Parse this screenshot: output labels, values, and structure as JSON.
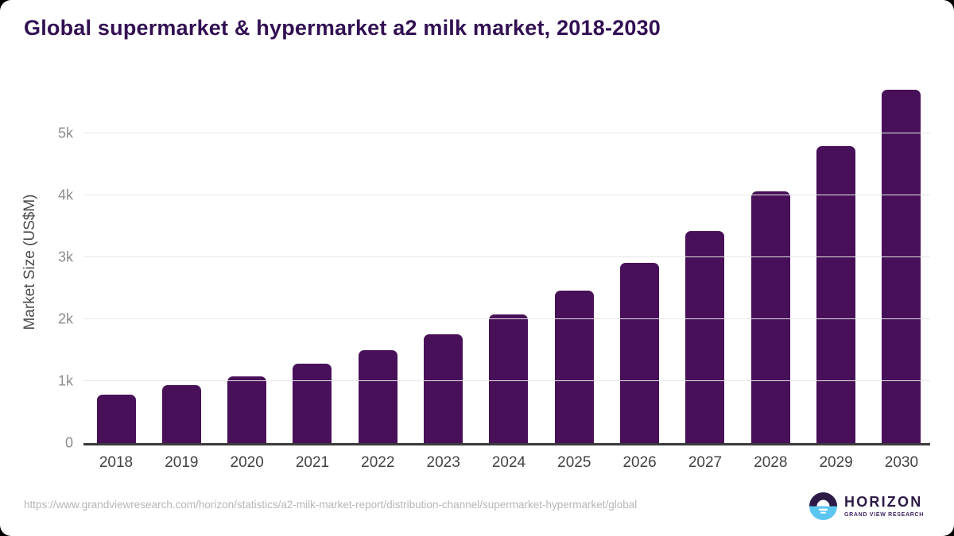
{
  "title": "Global supermarket & hypermarket a2 milk market, 2018-2030",
  "chart_data": {
    "type": "bar",
    "title": "Global supermarket & hypermarket a2 milk market, 2018-2030",
    "categories": [
      "2018",
      "2019",
      "2020",
      "2021",
      "2022",
      "2023",
      "2024",
      "2025",
      "2026",
      "2027",
      "2028",
      "2029",
      "2030"
    ],
    "values": [
      780,
      930,
      1080,
      1280,
      1500,
      1760,
      2080,
      2460,
      2910,
      3420,
      4060,
      4800,
      5700
    ],
    "xlabel": "",
    "ylabel": "Market Size (US$M)",
    "ylim": [
      0,
      5900
    ],
    "yticks": [
      {
        "value": 0,
        "label": "0"
      },
      {
        "value": 1000,
        "label": "1k"
      },
      {
        "value": 2000,
        "label": "2k"
      },
      {
        "value": 3000,
        "label": "3k"
      },
      {
        "value": 4000,
        "label": "4k"
      },
      {
        "value": 5000,
        "label": "5k"
      }
    ],
    "grid": true,
    "legend": "none",
    "bar_color": "#481059",
    "title_color": "#321053"
  },
  "footer": {
    "source_url": "https://www.grandviewresearch.com/horizon/statistics/a2-milk-market-report/distribution-channel/supermarket-hypermarket/global",
    "logo": {
      "name": "HORIZON",
      "subtitle": "GRAND VIEW RESEARCH",
      "icon": "horizon-sun-circle-icon",
      "dark_color": "#2e1a47",
      "blue_color": "#5bc6f0"
    }
  }
}
